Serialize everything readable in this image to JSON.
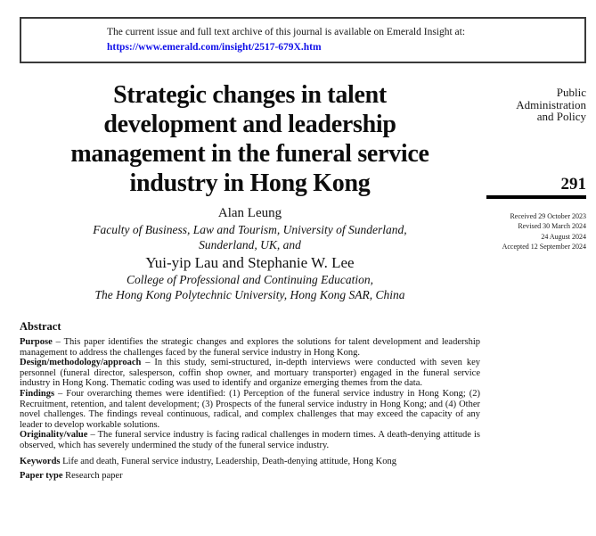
{
  "colors": {
    "link_blue": "#0f0fe8",
    "rule_black": "#000000",
    "text_black": "#111111"
  },
  "access_box": {
    "notice": "The current issue and full text archive of this journal is available on Emerald Insight at:",
    "url": "https://www.emerald.com/insight/2517-679X.htm"
  },
  "article": {
    "title": "Strategic changes in talent development and leadership management in the funeral service industry in Hong Kong",
    "title_lines": [
      "Strategic changes in talent",
      "development and leadership",
      "management in the funeral service",
      "industry in Hong Kong"
    ],
    "authors": [
      {
        "name": "Alan Leung",
        "affiliation_lines": [
          "Faculty of Business, Law and Tourism, University of Sunderland,",
          "Sunderland, UK, and"
        ]
      },
      {
        "name": "Yui-yip Lau and Stephanie W. Lee",
        "affiliation_lines": [
          "College of Professional and Continuing Education,",
          "The Hong Kong Polytechnic University, Hong Kong SAR, China"
        ]
      }
    ]
  },
  "sidebar": {
    "journal_name_lines": [
      "Public",
      "Administration",
      "and Policy"
    ],
    "page_number": "291",
    "history": [
      "Received 29 October 2023",
      "Revised 30 March 2024",
      "24 August 2024",
      "Accepted 12 September 2024"
    ]
  },
  "abstract": {
    "heading": "Abstract",
    "sections": [
      {
        "label": "Purpose",
        "text": "– This paper identifies the strategic changes and explores the solutions for talent development and leadership management to address the challenges faced by the funeral service industry in Hong Kong."
      },
      {
        "label": "Design/methodology/approach",
        "text": "– In this study, semi-structured, in-depth interviews were conducted with seven key personnel (funeral director, salesperson, coffin shop owner, and mortuary transporter) engaged in the funeral service industry in Hong Kong. Thematic coding was used to identify and organize emerging themes from the data."
      },
      {
        "label": "Findings",
        "text": "– Four overarching themes were identified: (1) Perception of the funeral service industry in Hong Kong; (2) Recruitment, retention, and talent development; (3) Prospects of the funeral service industry in Hong Kong; and (4) Other novel challenges. The findings reveal continuous, radical, and complex challenges that may exceed the capacity of any leader to develop workable solutions."
      },
      {
        "label": "Originality/value",
        "text": "– The funeral service industry is facing radical challenges in modern times. A death-denying attitude is observed, which has severely undermined the study of the funeral service industry."
      }
    ],
    "keywords_label": "Keywords",
    "keywords_text": "Life and death, Funeral service industry, Leadership, Death-denying attitude, Hong Kong",
    "paper_type_label": "Paper type",
    "paper_type_text": "Research paper"
  }
}
